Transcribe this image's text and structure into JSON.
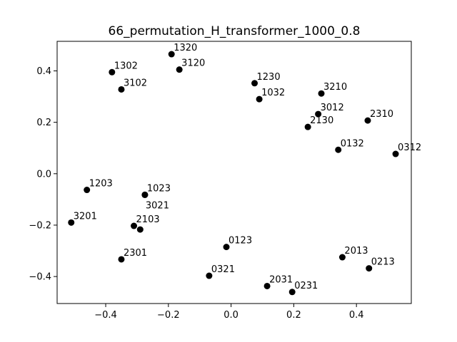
{
  "chart_data": {
    "type": "scatter",
    "title": "66_permutation_H_transformer_1000_0.8",
    "xlabel": "",
    "ylabel": "",
    "xlim": [
      -0.555,
      0.575
    ],
    "ylim": [
      -0.505,
      0.515
    ],
    "xticks": [
      -0.4,
      -0.2,
      0.0,
      0.2,
      0.4
    ],
    "xtick_labels": [
      "−0.4",
      "−0.2",
      "0.0",
      "0.2",
      "0.4"
    ],
    "yticks": [
      -0.4,
      -0.2,
      0.0,
      0.2,
      0.4
    ],
    "ytick_labels": [
      "−0.4",
      "−0.2",
      "0.0",
      "0.2",
      "0.4"
    ],
    "grid": false,
    "marker_color": "#000000",
    "points": [
      {
        "label": "1320",
        "x": -0.19,
        "y": 0.465
      },
      {
        "label": "1302",
        "x": -0.38,
        "y": 0.395
      },
      {
        "label": "3120",
        "x": -0.165,
        "y": 0.405
      },
      {
        "label": "3102",
        "x": -0.35,
        "y": 0.328
      },
      {
        "label": "1230",
        "x": 0.075,
        "y": 0.352
      },
      {
        "label": "1032",
        "x": 0.09,
        "y": 0.29
      },
      {
        "label": "3210",
        "x": 0.288,
        "y": 0.312
      },
      {
        "label": "3012",
        "x": 0.278,
        "y": 0.232
      },
      {
        "label": "2310",
        "x": 0.436,
        "y": 0.207
      },
      {
        "label": "2130",
        "x": 0.245,
        "y": 0.182
      },
      {
        "label": "0132",
        "x": 0.342,
        "y": 0.093
      },
      {
        "label": "0312",
        "x": 0.525,
        "y": 0.077
      },
      {
        "label": "1203",
        "x": -0.46,
        "y": -0.063
      },
      {
        "label": "1023",
        "x": -0.275,
        "y": -0.082
      },
      {
        "label": "3021",
        "x": -0.275,
        "y": -0.082
      },
      {
        "label": "3201",
        "x": -0.51,
        "y": -0.19
      },
      {
        "label": "2103",
        "x": -0.31,
        "y": -0.203
      },
      {
        "label": "",
        "x": -0.29,
        "y": -0.217
      },
      {
        "label": "2301",
        "x": -0.35,
        "y": -0.333
      },
      {
        "label": "0123",
        "x": -0.015,
        "y": -0.285
      },
      {
        "label": "0321",
        "x": -0.07,
        "y": -0.397
      },
      {
        "label": "2031",
        "x": 0.115,
        "y": -0.437
      },
      {
        "label": "0231",
        "x": 0.195,
        "y": -0.46
      },
      {
        "label": "2013",
        "x": 0.355,
        "y": -0.325
      },
      {
        "label": "0213",
        "x": 0.44,
        "y": -0.368
      }
    ]
  }
}
